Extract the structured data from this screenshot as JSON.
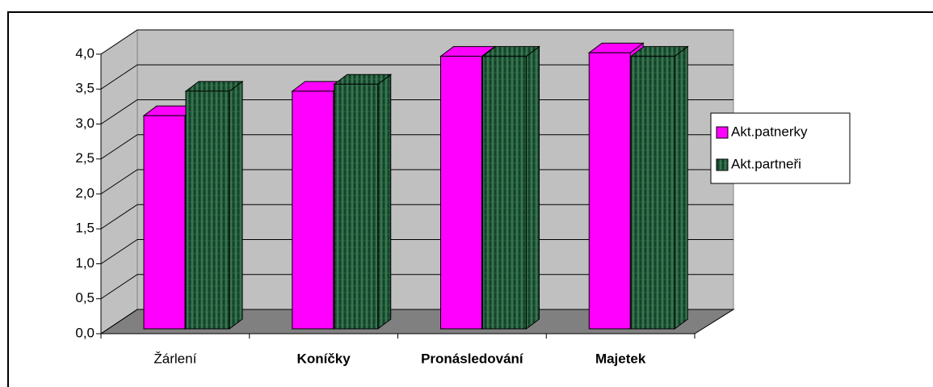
{
  "chart_data": {
    "type": "bar3d",
    "categories": [
      "Žárlení",
      "Koníčky",
      "Pronásledování",
      "Majetek"
    ],
    "category_bold": [
      false,
      true,
      true,
      true
    ],
    "series": [
      {
        "name": "Akt.patnerky",
        "color": "#ff00ff",
        "values": [
          3.05,
          3.4,
          3.9,
          3.95
        ]
      },
      {
        "name": "Akt.partneři",
        "color": "#1f5a3a",
        "values": [
          3.4,
          3.5,
          3.9,
          3.9
        ]
      }
    ],
    "ylim": [
      0,
      4
    ],
    "yticks": [
      {
        "value": 0,
        "label": "0,0"
      },
      {
        "value": 0.5,
        "label": "0,5"
      },
      {
        "value": 1,
        "label": "1,0"
      },
      {
        "value": 1.5,
        "label": "1,5"
      },
      {
        "value": 2,
        "label": "2,0"
      },
      {
        "value": 2.5,
        "label": "2,5"
      },
      {
        "value": 3,
        "label": "3,0"
      },
      {
        "value": 3.5,
        "label": "3,5"
      },
      {
        "value": 4,
        "label": "4,0"
      }
    ],
    "grid": true,
    "legend": "right"
  }
}
